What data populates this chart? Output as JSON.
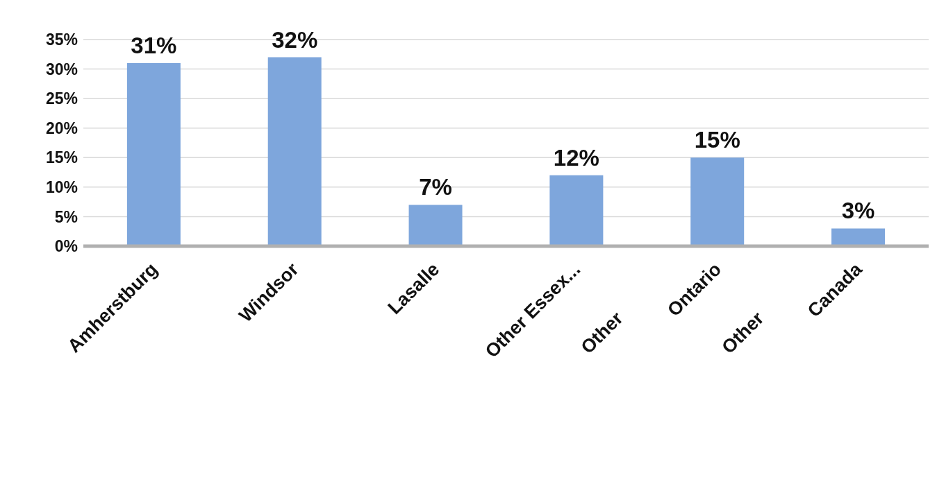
{
  "chart_data": {
    "type": "bar",
    "categories": [
      "Amherstburg",
      "Windsor",
      "Lasalle",
      "Other Essex...",
      "Other\nOntario",
      "Other\nCanada"
    ],
    "values": [
      31,
      32,
      7,
      12,
      15,
      3
    ],
    "value_labels": [
      "31%",
      "32%",
      "7%",
      "12%",
      "15%",
      "3%"
    ],
    "color": "#7ea6dc",
    "ylim": [
      0,
      35
    ],
    "yticks": [
      {
        "value": 0,
        "label": "0%"
      },
      {
        "value": 5,
        "label": "5%"
      },
      {
        "value": 10,
        "label": "10%"
      },
      {
        "value": 15,
        "label": "15%"
      },
      {
        "value": 20,
        "label": "20%"
      },
      {
        "value": 25,
        "label": "25%"
      },
      {
        "value": 30,
        "label": "30%"
      },
      {
        "value": 35,
        "label": "35%"
      }
    ],
    "grid": "y"
  }
}
